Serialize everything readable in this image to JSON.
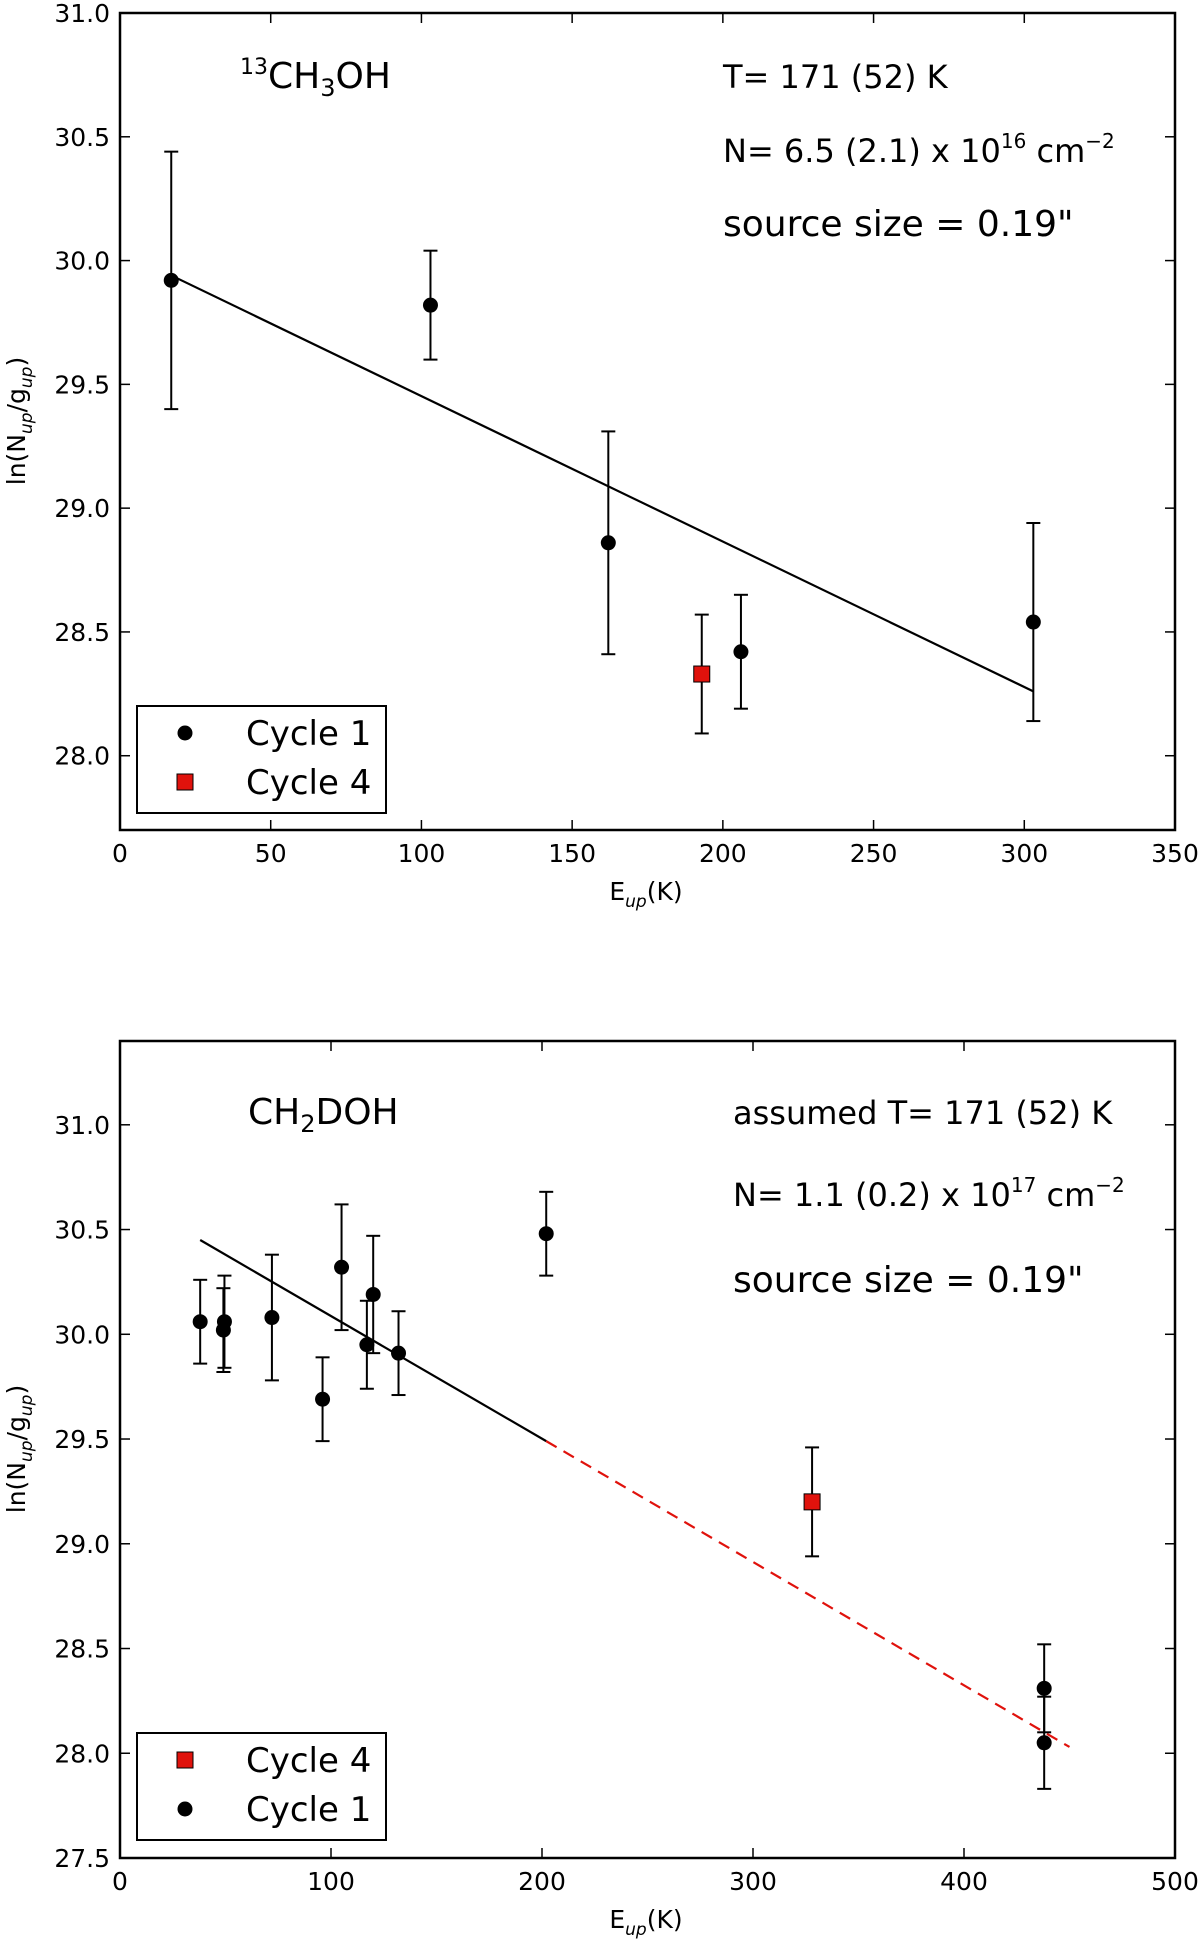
{
  "chart_data": [
    {
      "type": "scatter",
      "molecule": {
        "sup": "13",
        "a": "CH",
        "sub": "3",
        "b": "OH"
      },
      "xlabel": {
        "main": "E",
        "sub": "up",
        "tail": "(K)"
      },
      "ylabel": {
        "main": "ln(N",
        "sub1": "up",
        "mid": "/g",
        "sub2": "up",
        "tail": ")"
      },
      "xlim": [
        0,
        350
      ],
      "ylim": [
        27.7,
        31.0
      ],
      "xticks": [
        "0",
        "50",
        "100",
        "150",
        "200",
        "250",
        "300",
        "350"
      ],
      "yticks": [
        "28.0",
        "28.5",
        "29.0",
        "29.5",
        "30.0",
        "30.5",
        "31.0"
      ],
      "annotations": {
        "temperature": "T= 171 (52) K",
        "column_pre": "N= 6.5 (2.1) x 10",
        "column_exp": "16",
        "column_unit": " cm",
        "column_unit_exp": "−2",
        "source_size": "source size = 0.19\""
      },
      "legend": [
        {
          "label": "Cycle 1",
          "marker": "circle",
          "color": "#000000"
        },
        {
          "label": "Cycle 4",
          "marker": "square",
          "color": "#e0120c"
        }
      ],
      "fit_line": {
        "x": [
          17,
          303
        ],
        "y": [
          29.94,
          28.26
        ],
        "color": "#000000",
        "style": "solid"
      },
      "series": [
        {
          "name": "Cycle 1",
          "marker": "circle",
          "color": "#000000",
          "points": [
            {
              "x": 17,
              "y": 29.92,
              "err": 0.52
            },
            {
              "x": 103,
              "y": 29.82,
              "err": 0.22
            },
            {
              "x": 162,
              "y": 28.86,
              "err": 0.45
            },
            {
              "x": 206,
              "y": 28.42,
              "err": 0.23
            },
            {
              "x": 303,
              "y": 28.54,
              "err": 0.4
            }
          ]
        },
        {
          "name": "Cycle 4",
          "marker": "square",
          "color": "#e0120c",
          "points": [
            {
              "x": 193,
              "y": 28.33,
              "err": 0.24
            }
          ]
        }
      ]
    },
    {
      "type": "scatter",
      "molecule": {
        "sup": "",
        "a": "CH",
        "sub": "2",
        "b": "DOH"
      },
      "xlabel": {
        "main": "E",
        "sub": "up",
        "tail": "(K)"
      },
      "ylabel": {
        "main": "ln(N",
        "sub1": "up",
        "mid": "/g",
        "sub2": "up",
        "tail": ")"
      },
      "xlim": [
        0,
        500
      ],
      "ylim": [
        27.5,
        31.4
      ],
      "xticks": [
        "0",
        "100",
        "200",
        "300",
        "400",
        "500"
      ],
      "yticks": [
        "27.5",
        "28.0",
        "28.5",
        "29.0",
        "29.5",
        "30.0",
        "30.5",
        "31.0"
      ],
      "annotations": {
        "temperature": "assumed T= 171 (52) K",
        "column_pre": "N= 1.1 (0.2) x 10",
        "column_exp": "17",
        "column_unit": " cm",
        "column_unit_exp": "−2",
        "source_size": "source size = 0.19\""
      },
      "legend": [
        {
          "label": "Cycle 4",
          "marker": "square",
          "color": "#e0120c"
        },
        {
          "label": "Cycle 1",
          "marker": "circle",
          "color": "#000000"
        }
      ],
      "fit_line": {
        "x": [
          38,
          202
        ],
        "y": [
          30.45,
          29.49
        ],
        "color": "#000000",
        "style": "solid"
      },
      "fit_extension": {
        "x": [
          202,
          450
        ],
        "y": [
          29.49,
          28.03
        ],
        "color": "#e0120c",
        "style": "dashed"
      },
      "series": [
        {
          "name": "Cycle 1",
          "marker": "circle",
          "color": "#000000",
          "points": [
            {
              "x": 38,
              "y": 30.06,
              "err": 0.2
            },
            {
              "x": 49,
              "y": 30.02,
              "err": 0.2
            },
            {
              "x": 49.5,
              "y": 30.06,
              "err": 0.22
            },
            {
              "x": 72,
              "y": 30.08,
              "err": 0.3
            },
            {
              "x": 96,
              "y": 29.69,
              "err": 0.2
            },
            {
              "x": 105,
              "y": 30.32,
              "err": 0.3
            },
            {
              "x": 117,
              "y": 29.95,
              "err": 0.21
            },
            {
              "x": 120,
              "y": 30.19,
              "err": 0.28
            },
            {
              "x": 132,
              "y": 29.91,
              "err": 0.2
            },
            {
              "x": 202,
              "y": 30.48,
              "err": 0.2
            },
            {
              "x": 438,
              "y": 28.31,
              "err": 0.21
            },
            {
              "x": 438,
              "y": 28.05,
              "err": 0.22
            }
          ]
        },
        {
          "name": "Cycle 4",
          "marker": "square",
          "color": "#e0120c",
          "points": [
            {
              "x": 328,
              "y": 29.2,
              "err": 0.26
            }
          ]
        }
      ]
    }
  ]
}
